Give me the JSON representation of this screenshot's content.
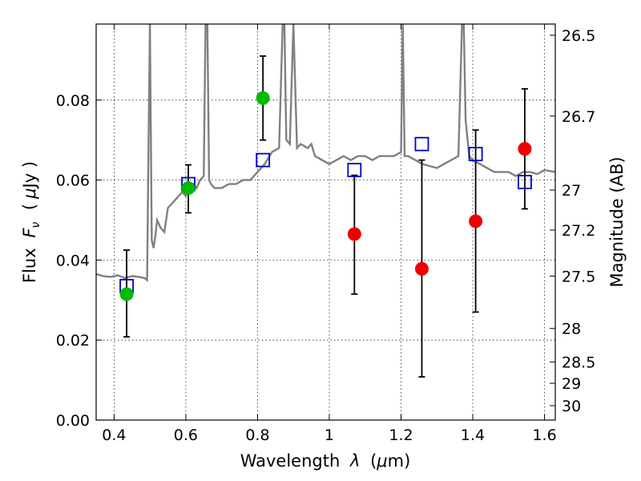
{
  "chart_data": {
    "type": "scatter",
    "title": "",
    "xlabel_prefix": "Wavelength",
    "xlabel_symbol": "λ",
    "xlabel_unit_open": "(",
    "xlabel_unit_mu": "μ",
    "xlabel_unit_rest": "m)",
    "ylabel_prefix": "Flux",
    "ylabel_symbol_main": "F",
    "ylabel_symbol_sub": "ν",
    "ylabel_unit_open": "(",
    "ylabel_unit_mu": "μ",
    "ylabel_unit_rest": "Jy )",
    "ylabel_right": "Magnitude (AB)",
    "xlim": [
      0.35,
      1.63
    ],
    "ylim": [
      0.0,
      0.099
    ],
    "grid": true,
    "x_ticks": [
      0.4,
      0.6,
      0.8,
      1.0,
      1.2,
      1.4,
      1.6
    ],
    "x_tick_labels": [
      "0.4",
      "0.6",
      "0.8",
      "1",
      "1.2",
      "1.4",
      "1.6"
    ],
    "y_ticks": [
      0.0,
      0.02,
      0.04,
      0.06,
      0.08
    ],
    "y_tick_labels": [
      "0.00",
      "0.02",
      "0.04",
      "0.06",
      "0.08"
    ],
    "right_ticks": [
      {
        "flux": 0.0962,
        "label": "26.5"
      },
      {
        "flux": 0.076,
        "label": "26.7"
      },
      {
        "flux": 0.0575,
        "label": "27"
      },
      {
        "flux": 0.0475,
        "label": "27.2"
      },
      {
        "flux": 0.036,
        "label": "27.5"
      },
      {
        "flux": 0.0229,
        "label": "28"
      },
      {
        "flux": 0.0145,
        "label": "28.5"
      },
      {
        "flux": 0.0092,
        "label": "29"
      },
      {
        "flux": 0.0036,
        "label": "30"
      }
    ],
    "colors": {
      "model": "#808080",
      "model_points": "#0000cc",
      "detections": "#00bb00",
      "upper": "#ee0000",
      "errorbar": "#000000"
    },
    "model_spectrum": {
      "x": [
        0.35,
        0.37,
        0.39,
        0.41,
        0.43,
        0.45,
        0.47,
        0.485,
        0.492,
        0.495,
        0.5,
        0.505,
        0.51,
        0.515,
        0.52,
        0.53,
        0.54,
        0.55,
        0.56,
        0.57,
        0.58,
        0.59,
        0.6,
        0.61,
        0.62,
        0.63,
        0.64,
        0.65,
        0.655,
        0.66,
        0.665,
        0.67,
        0.68,
        0.69,
        0.7,
        0.72,
        0.74,
        0.76,
        0.78,
        0.8,
        0.82,
        0.84,
        0.86,
        0.87,
        0.875,
        0.88,
        0.89,
        0.9,
        0.91,
        0.92,
        0.94,
        0.95,
        0.96,
        0.98,
        1.0,
        1.02,
        1.04,
        1.06,
        1.08,
        1.1,
        1.12,
        1.14,
        1.16,
        1.18,
        1.2,
        1.205,
        1.21,
        1.22,
        1.24,
        1.26,
        1.28,
        1.3,
        1.32,
        1.34,
        1.36,
        1.37,
        1.375,
        1.38,
        1.39,
        1.4,
        1.42,
        1.44,
        1.46,
        1.48,
        1.5,
        1.52,
        1.54,
        1.56,
        1.58,
        1.6,
        1.63
      ],
      "y": [
        0.0365,
        0.036,
        0.0358,
        0.0362,
        0.0355,
        0.036,
        0.0358,
        0.0355,
        0.035,
        0.06,
        0.099,
        0.045,
        0.043,
        0.046,
        0.05,
        0.048,
        0.047,
        0.053,
        0.054,
        0.055,
        0.056,
        0.057,
        0.056,
        0.058,
        0.059,
        0.058,
        0.06,
        0.061,
        0.099,
        0.099,
        0.06,
        0.059,
        0.058,
        0.058,
        0.058,
        0.059,
        0.059,
        0.06,
        0.06,
        0.062,
        0.064,
        0.067,
        0.068,
        0.099,
        0.099,
        0.07,
        0.069,
        0.099,
        0.068,
        0.069,
        0.068,
        0.069,
        0.066,
        0.065,
        0.064,
        0.065,
        0.066,
        0.065,
        0.066,
        0.066,
        0.065,
        0.066,
        0.066,
        0.066,
        0.067,
        0.099,
        0.066,
        0.066,
        0.065,
        0.064,
        0.0635,
        0.063,
        0.064,
        0.065,
        0.066,
        0.099,
        0.099,
        0.075,
        0.066,
        0.065,
        0.064,
        0.063,
        0.062,
        0.062,
        0.062,
        0.061,
        0.062,
        0.062,
        0.0615,
        0.0625,
        0.062
      ]
    },
    "model_points": [
      {
        "x": 0.435,
        "y": 0.0335
      },
      {
        "x": 0.607,
        "y": 0.059
      },
      {
        "x": 0.815,
        "y": 0.065
      },
      {
        "x": 1.07,
        "y": 0.0625
      },
      {
        "x": 1.258,
        "y": 0.069
      },
      {
        "x": 1.408,
        "y": 0.0665
      },
      {
        "x": 1.545,
        "y": 0.0595
      }
    ],
    "detections": [
      {
        "x": 0.435,
        "y": 0.0315
      },
      {
        "x": 0.607,
        "y": 0.058
      },
      {
        "x": 0.815,
        "y": 0.0805
      }
    ],
    "nondetections": [
      {
        "x": 1.07,
        "y": 0.0465
      },
      {
        "x": 1.258,
        "y": 0.0378
      },
      {
        "x": 1.408,
        "y": 0.0497
      },
      {
        "x": 1.545,
        "y": 0.0678
      }
    ],
    "errorbars": [
      {
        "x": 0.435,
        "low": 0.0208,
        "high": 0.0425
      },
      {
        "x": 0.607,
        "low": 0.0518,
        "high": 0.0638
      },
      {
        "x": 0.815,
        "low": 0.07,
        "high": 0.091
      },
      {
        "x": 1.07,
        "low": 0.0315,
        "high": 0.0612
      },
      {
        "x": 1.258,
        "low": 0.0108,
        "high": 0.065
      },
      {
        "x": 1.408,
        "low": 0.027,
        "high": 0.0725
      },
      {
        "x": 1.545,
        "low": 0.0528,
        "high": 0.0828
      }
    ]
  }
}
